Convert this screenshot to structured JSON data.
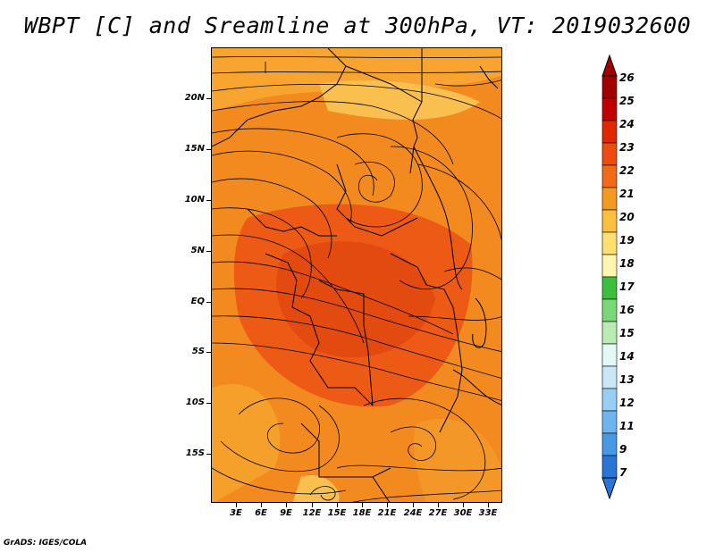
{
  "title": "WBPT [C] and Sreamline at 300hPa, VT: 2019032600",
  "credit": "GrADS: IGES/COLA",
  "map": {
    "lat_labels": [
      "20N",
      "15N",
      "10N",
      "5N",
      "EQ",
      "5S",
      "10S",
      "15S"
    ],
    "lon_labels": [
      "3E",
      "6E",
      "9E",
      "12E",
      "15E",
      "18E",
      "21E",
      "24E",
      "27E",
      "30E",
      "33E"
    ]
  },
  "colorbar": {
    "levels": [
      "26",
      "25",
      "24",
      "23",
      "22",
      "21",
      "20",
      "19",
      "18",
      "17",
      "16",
      "15",
      "14",
      "13",
      "12",
      "11",
      "9",
      "7"
    ],
    "colors": [
      "#a00000",
      "#c00000",
      "#e02800",
      "#ef4a10",
      "#f06a1a",
      "#f59a20",
      "#fbc040",
      "#fde070",
      "#fff6b0",
      "#3cbf3c",
      "#7ad87a",
      "#b8ecb0",
      "#e4f8f8",
      "#c8e8fa",
      "#98cef5",
      "#6eb4ee",
      "#4898e6",
      "#2a74d8"
    ]
  }
}
